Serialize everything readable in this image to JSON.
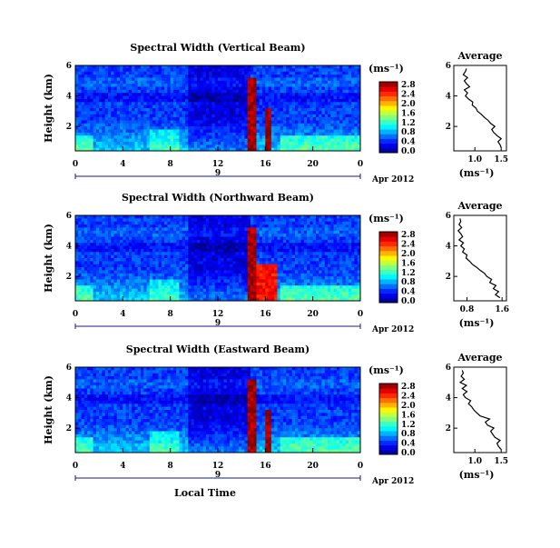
{
  "chart_data": [
    {
      "type": "heatmap",
      "title": "Spectral Width (Vertical Beam)",
      "ylabel": "Height (km)",
      "xticks": [
        "0",
        "4",
        "8",
        "12",
        "16",
        "20",
        "0"
      ],
      "yticks": [
        "2",
        "4",
        "6"
      ],
      "date_day": "9",
      "date_label": "Apr 2012",
      "xlim": [
        0,
        24
      ],
      "ylim": [
        0.4,
        6.0
      ],
      "colorbar": {
        "unit": "(ms⁻¹)",
        "ticks": [
          "0.0",
          "0.4",
          "0.8",
          "1.2",
          "1.6",
          "2.0",
          "2.4",
          "2.8"
        ],
        "range": [
          0,
          3.0
        ]
      },
      "average": {
        "title": "Average",
        "xlabel": "(ms⁻¹)",
        "xticks": [
          "1.0",
          "1.5"
        ],
        "yticks": [
          "2",
          "4",
          "6"
        ],
        "xlim": [
          0.6,
          1.6
        ],
        "height_km": [
          0.6,
          0.8,
          1.0,
          1.2,
          1.4,
          1.6,
          1.8,
          2.0,
          2.2,
          2.4,
          2.6,
          2.8,
          3.0,
          3.2,
          3.4,
          3.6,
          3.8,
          4.0,
          4.2,
          4.4,
          4.6,
          4.8,
          5.0,
          5.2,
          5.4,
          5.6,
          5.8
        ],
        "width": [
          1.5,
          1.48,
          1.44,
          1.5,
          1.42,
          1.36,
          1.32,
          1.38,
          1.3,
          1.25,
          1.18,
          1.12,
          1.05,
          1.02,
          0.95,
          0.96,
          0.88,
          0.82,
          0.86,
          0.8,
          0.9,
          0.84,
          0.8,
          0.86,
          0.78,
          0.82,
          0.84
        ]
      }
    },
    {
      "type": "heatmap",
      "title": "Spectral Width (Northward Beam)",
      "ylabel": "Height (km)",
      "xticks": [
        "0",
        "4",
        "8",
        "12",
        "16",
        "20",
        "0"
      ],
      "yticks": [
        "2",
        "4",
        "6"
      ],
      "date_day": "9",
      "date_label": "Apr 2012",
      "xlim": [
        0,
        24
      ],
      "ylim": [
        0.4,
        6.0
      ],
      "colorbar": {
        "unit": "(ms⁻¹)",
        "ticks": [
          "0.0",
          "0.4",
          "0.8",
          "1.2",
          "1.6",
          "2.0",
          "2.4",
          "2.8"
        ],
        "range": [
          0,
          3.0
        ]
      },
      "average": {
        "title": "Average",
        "xlabel": "(ms⁻¹)",
        "xticks": [
          "0.8",
          "1.6"
        ],
        "yticks": [
          "2",
          "4",
          "6"
        ],
        "xlim": [
          0.5,
          1.7
        ],
        "height_km": [
          0.6,
          0.8,
          1.0,
          1.2,
          1.4,
          1.6,
          1.8,
          2.0,
          2.2,
          2.4,
          2.6,
          2.8,
          3.0,
          3.2,
          3.4,
          3.6,
          3.8,
          4.0,
          4.2,
          4.4,
          4.6,
          4.8,
          5.0,
          5.2,
          5.4,
          5.6,
          5.8
        ],
        "width": [
          1.55,
          1.45,
          1.52,
          1.4,
          1.46,
          1.32,
          1.36,
          1.25,
          1.2,
          1.1,
          1.02,
          0.92,
          0.86,
          0.78,
          0.8,
          0.7,
          0.74,
          0.66,
          0.72,
          0.62,
          0.7,
          0.66,
          0.6,
          0.68,
          0.62,
          0.66,
          0.64
        ]
      }
    },
    {
      "type": "heatmap",
      "title": "Spectral Width (Eastward Beam)",
      "ylabel": "Height (km)",
      "xticks": [
        "0",
        "4",
        "8",
        "12",
        "16",
        "20",
        "0"
      ],
      "yticks": [
        "2",
        "4",
        "6"
      ],
      "date_day": "9",
      "date_label": "Apr 2012",
      "xlabel": "Local Time",
      "xlim": [
        0,
        24
      ],
      "ylim": [
        0.4,
        6.0
      ],
      "colorbar": {
        "unit": "(ms⁻¹)",
        "ticks": [
          "0.0",
          "0.4",
          "0.8",
          "1.2",
          "1.6",
          "2.0",
          "2.4",
          "2.8"
        ],
        "range": [
          0,
          3.0
        ]
      },
      "average": {
        "title": "Average",
        "xlabel": "(ms⁻¹)",
        "xticks": [
          "1.0",
          "1.5"
        ],
        "yticks": [
          "2",
          "4",
          "6"
        ],
        "xlim": [
          0.6,
          1.6
        ],
        "height_km": [
          0.6,
          0.8,
          1.0,
          1.2,
          1.4,
          1.6,
          1.8,
          2.0,
          2.2,
          2.4,
          2.6,
          2.8,
          3.0,
          3.2,
          3.4,
          3.6,
          3.8,
          4.0,
          4.2,
          4.4,
          4.6,
          4.8,
          5.0,
          5.2,
          5.4,
          5.6,
          5.8
        ],
        "width": [
          1.5,
          1.45,
          1.42,
          1.48,
          1.38,
          1.34,
          1.3,
          1.36,
          1.24,
          1.2,
          1.28,
          1.1,
          1.04,
          0.98,
          0.94,
          0.88,
          0.92,
          0.82,
          0.78,
          0.85,
          0.76,
          0.84,
          0.72,
          0.8,
          0.74,
          0.78,
          0.76
        ]
      }
    }
  ]
}
